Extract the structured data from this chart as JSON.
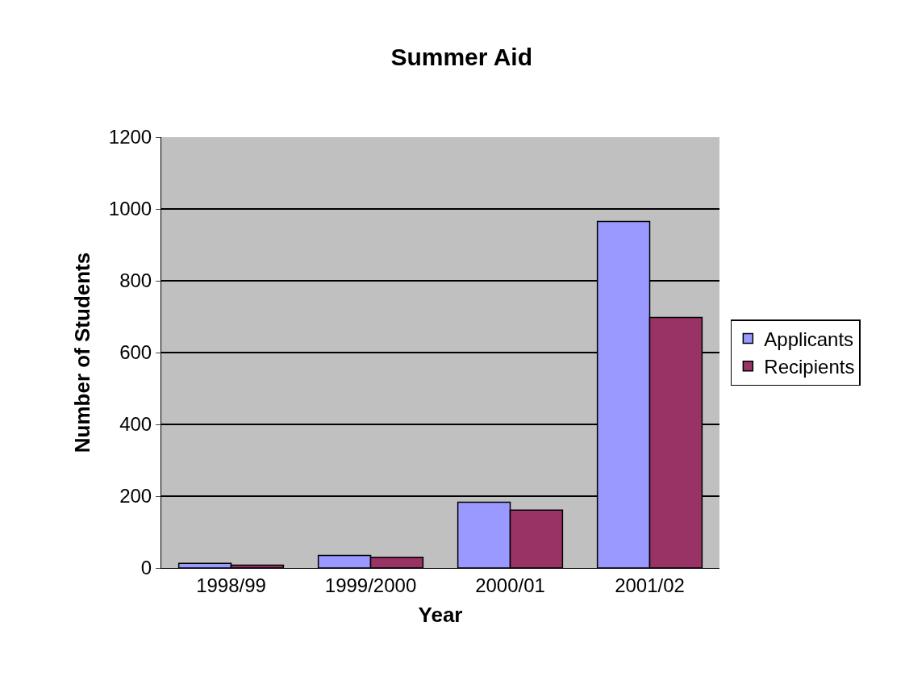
{
  "chart_data": {
    "type": "bar",
    "title": "Summer Aid",
    "xlabel": "Year",
    "ylabel": "Number of Students",
    "categories": [
      "1998/99",
      "1999/2000",
      "2000/01",
      "2001/02"
    ],
    "series": [
      {
        "name": "Applicants",
        "color": "#9999ff",
        "values": [
          13,
          35,
          183,
          965
        ]
      },
      {
        "name": "Recipients",
        "color": "#993366",
        "values": [
          8,
          30,
          161,
          698
        ]
      }
    ],
    "ylim": [
      0,
      1200
    ],
    "yticks": [
      0,
      200,
      400,
      600,
      800,
      1000,
      1200
    ],
    "grid": "y",
    "legend": "right"
  }
}
